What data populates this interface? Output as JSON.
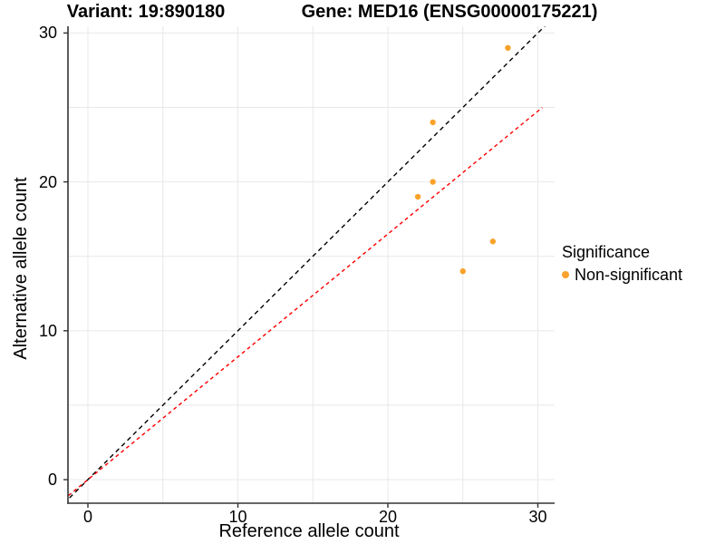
{
  "header": {
    "variant_title": "Variant: 19:890180",
    "gene_title": "Gene: MED16 (ENSG00000175221)"
  },
  "axes": {
    "x": {
      "label": "Reference allele count",
      "ticks": [
        0,
        10,
        20,
        30
      ]
    },
    "y": {
      "label": "Alternative allele count",
      "ticks": [
        0,
        10,
        20,
        30
      ]
    }
  },
  "legend": {
    "title": "Significance",
    "items": [
      {
        "label": "Non-significant",
        "color": "#F9A22B"
      }
    ]
  },
  "colors": {
    "background": "#FFFFFF",
    "grid": "#E8E8E8",
    "axis": "#333333",
    "point": "#F9A22B",
    "identity_line": "#000000",
    "ratio_line": "#FF0000"
  },
  "chart_data": {
    "type": "scatter",
    "title_left": "Variant: 19:890180",
    "title_right": "Gene: MED16 (ENSG00000175221)",
    "xlabel": "Reference allele count",
    "ylabel": "Alternative allele count",
    "xlim": [
      -1.6,
      31.1
    ],
    "ylim": [
      -1.6,
      30.4
    ],
    "xticks": [
      0,
      10,
      20,
      30
    ],
    "yticks": [
      0,
      10,
      20,
      30
    ],
    "grid_ticks": [
      0,
      5,
      10,
      15,
      20,
      25,
      30
    ],
    "grid": true,
    "legend_position": "right",
    "series": [
      {
        "name": "Non-significant",
        "color": "#F9A22B",
        "points": [
          [
            22,
            19
          ],
          [
            23,
            20
          ],
          [
            23,
            24
          ],
          [
            25,
            14
          ],
          [
            27,
            16
          ],
          [
            28,
            29
          ]
        ]
      }
    ],
    "lines": [
      {
        "name": "identity-line",
        "slope": 1,
        "intercept": 0,
        "color": "#000000",
        "style": "dashed",
        "x_range": [
          -2,
          32
        ]
      },
      {
        "name": "ratio-line",
        "slope": 0.825,
        "intercept": 0,
        "color": "#FF0000",
        "style": "dashed",
        "x_range": [
          -2,
          30.3
        ]
      }
    ]
  }
}
